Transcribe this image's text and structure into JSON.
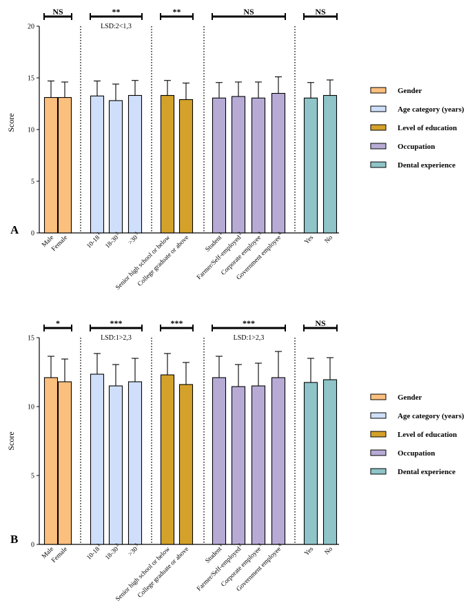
{
  "colors": {
    "gender": "#fbbf7e",
    "age": "#cfdffb",
    "education": "#d4a22a",
    "occupation": "#b7abd6",
    "dental": "#8fc4c8"
  },
  "legend": [
    {
      "label": "Gender",
      "color_key": "gender"
    },
    {
      "label": "Age category (years)",
      "color_key": "age"
    },
    {
      "label": "Level of education",
      "color_key": "education"
    },
    {
      "label": "Occupation",
      "color_key": "occupation"
    },
    {
      "label": "Dental experience",
      "color_key": "dental"
    }
  ],
  "chart_data": [
    {
      "panel": "A",
      "type": "bar",
      "ylabel": "Score",
      "ylim": [
        0,
        20
      ],
      "yticks": [
        0,
        5,
        10,
        15,
        20
      ],
      "groups": [
        {
          "name": "Gender",
          "color_key": "gender",
          "significance": "NS",
          "lsd": "",
          "bars": [
            {
              "label": "Male",
              "sup": "",
              "value": 13.1,
              "error": 1.6
            },
            {
              "label": "Female",
              "sup": "",
              "value": 13.1,
              "error": 1.5
            }
          ]
        },
        {
          "name": "Age category (years)",
          "color_key": "age",
          "significance": "**",
          "lsd": "LSD:2<1,3",
          "bars": [
            {
              "label": "10-18",
              "sup": "1",
              "value": 13.25,
              "error": 1.45
            },
            {
              "label": "18-30",
              "sup": "2",
              "value": 12.8,
              "error": 1.6
            },
            {
              "label": ">30",
              "sup": "3",
              "value": 13.3,
              "error": 1.45
            }
          ]
        },
        {
          "name": "Level of education",
          "color_key": "education",
          "significance": "**",
          "lsd": "",
          "bars": [
            {
              "label": "Senior high school or below",
              "sup": "",
              "value": 13.3,
              "error": 1.45
            },
            {
              "label": "College graduate or above",
              "sup": "",
              "value": 12.9,
              "error": 1.6
            }
          ]
        },
        {
          "name": "Occupation",
          "color_key": "occupation",
          "significance": "NS",
          "lsd": "",
          "bars": [
            {
              "label": "Student",
              "sup": "1",
              "value": 13.05,
              "error": 1.5
            },
            {
              "label": "Farmer/Self-employed",
              "sup": "2",
              "value": 13.2,
              "error": 1.4
            },
            {
              "label": "Corporate employee",
              "sup": "3",
              "value": 13.05,
              "error": 1.55
            },
            {
              "label": "Government employee",
              "sup": "4",
              "value": 13.5,
              "error": 1.6
            }
          ]
        },
        {
          "name": "Dental experience",
          "color_key": "dental",
          "significance": "NS",
          "lsd": "",
          "bars": [
            {
              "label": "Yes",
              "sup": "",
              "value": 13.05,
              "error": 1.5
            },
            {
              "label": "No",
              "sup": "",
              "value": 13.3,
              "error": 1.5
            }
          ]
        }
      ]
    },
    {
      "panel": "B",
      "type": "bar",
      "ylabel": "Score",
      "ylim": [
        0,
        15
      ],
      "yticks": [
        0,
        5,
        10,
        15
      ],
      "groups": [
        {
          "name": "Gender",
          "color_key": "gender",
          "significance": "*",
          "lsd": "",
          "bars": [
            {
              "label": "Male",
              "sup": "",
              "value": 12.1,
              "error": 1.55
            },
            {
              "label": "Female",
              "sup": "",
              "value": 11.8,
              "error": 1.65
            }
          ]
        },
        {
          "name": "Age category (years)",
          "color_key": "age",
          "significance": "***",
          "lsd": "LSD:1>2,3",
          "bars": [
            {
              "label": "10-18",
              "sup": "1",
              "value": 12.35,
              "error": 1.5
            },
            {
              "label": "18-30",
              "sup": "2",
              "value": 11.5,
              "error": 1.55
            },
            {
              "label": ">30",
              "sup": "3",
              "value": 11.8,
              "error": 1.7
            }
          ]
        },
        {
          "name": "Level of education",
          "color_key": "education",
          "significance": "***",
          "lsd": "",
          "bars": [
            {
              "label": "Senior high school or below",
              "sup": "",
              "value": 12.3,
              "error": 1.55
            },
            {
              "label": "College graduate or above",
              "sup": "",
              "value": 11.6,
              "error": 1.6
            }
          ]
        },
        {
          "name": "Occupation",
          "color_key": "occupation",
          "significance": "***",
          "lsd": "LSD:1>2,3",
          "bars": [
            {
              "label": "Student",
              "sup": "1",
              "value": 12.1,
              "error": 1.55
            },
            {
              "label": "Farmer/Self-employed",
              "sup": "2",
              "value": 11.45,
              "error": 1.6
            },
            {
              "label": "Corporate employee",
              "sup": "3",
              "value": 11.5,
              "error": 1.65
            },
            {
              "label": "Government employee",
              "sup": "4",
              "value": 12.1,
              "error": 1.9
            }
          ]
        },
        {
          "name": "Dental experience",
          "color_key": "dental",
          "significance": "NS",
          "lsd": "",
          "bars": [
            {
              "label": "Yes",
              "sup": "",
              "value": 11.75,
              "error": 1.75
            },
            {
              "label": "No",
              "sup": "",
              "value": 11.95,
              "error": 1.6
            }
          ]
        }
      ]
    }
  ]
}
